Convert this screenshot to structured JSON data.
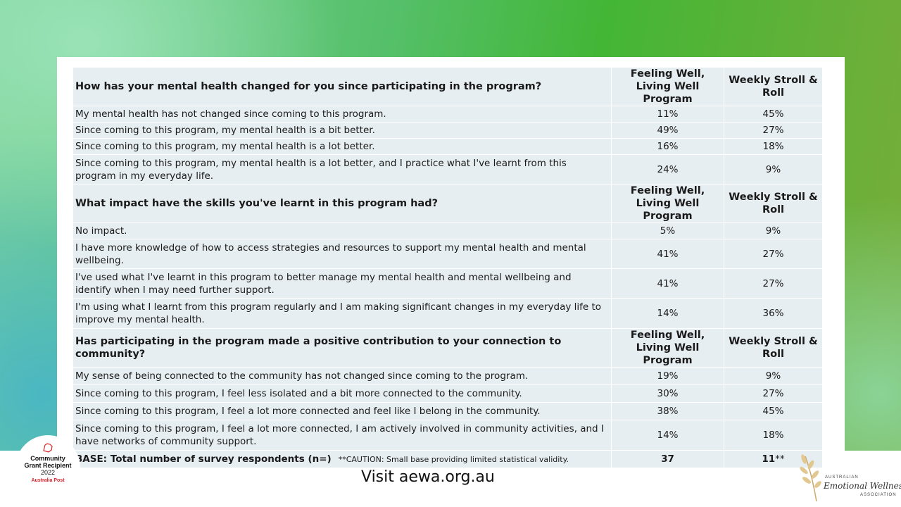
{
  "columns": {
    "col1": "Feeling Well, Living Well  Program",
    "col1b": "Feeling Well, Living Well Program",
    "col2": "Weekly Stroll & Roll"
  },
  "section1": {
    "question": "How has your mental health changed for you since participating in the program?",
    "rows": [
      {
        "label": "My mental health has not changed since coming to this program.",
        "v1": "11%",
        "v2": "45%"
      },
      {
        "label": "Since coming to this program, my mental health is a bit better.",
        "v1": "49%",
        "v2": "27%"
      },
      {
        "label": "Since coming to this program, my mental health is a lot better.",
        "v1": "16%",
        "v2": "18%"
      },
      {
        "label": "Since coming to this program, my mental health is a lot better, and I practice what I've learnt from this program in my everyday life.",
        "v1": "24%",
        "v2": "9%"
      }
    ]
  },
  "section2": {
    "question": "What impact have the skills you've learnt in this program had?",
    "rows": [
      {
        "label": "No impact.",
        "v1": "5%",
        "v2": "9%"
      },
      {
        "label": "I have more knowledge of how to access strategies and resources to support my mental health and mental wellbeing.",
        "v1": "41%",
        "v2": "27%"
      },
      {
        "label": "I've used what I've learnt in this program to better manage my mental health and mental wellbeing and identify when I may need further support.",
        "v1": "41%",
        "v2": "27%"
      },
      {
        "label": "I'm using what I learnt from this program regularly and I am making significant changes in my everyday life to improve my mental health.",
        "v1": "14%",
        "v2": "36%"
      }
    ]
  },
  "section3": {
    "question": "Has participating in the program made a positive contribution to your connection to community?",
    "rows": [
      {
        "label": "My sense of being connected to the community has not changed since coming to the program.",
        "v1": "19%",
        "v2": "9%"
      },
      {
        "label": "Since coming to this program, I feel less isolated and a bit more connected to the community.",
        "v1": "30%",
        "v2": "27%"
      },
      {
        "label": "Since coming to this program, I feel a lot more connected and feel like I belong in the community.",
        "v1": "38%",
        "v2": "45%"
      },
      {
        "label": "Since coming to this program, I feel a lot more connected, I am actively involved in community activities, and I have networks of community support.",
        "v1": "14%",
        "v2": "18%"
      }
    ]
  },
  "base": {
    "label": "BASE: Total number of survey respondents (n=)",
    "caution": "**CAUTION:  Small base providing limited  statistical validity.",
    "v1": "37",
    "v2": "11",
    "v2_suffix": "**"
  },
  "footer": {
    "url": "Visit aewa.org.au"
  },
  "badge": {
    "line1": "Community",
    "line2": "Grant Recipient",
    "line3": "2022",
    "brand": "Australia Post",
    "icon": "australia-post-logo-icon"
  },
  "logo": {
    "line1": "AUSTRALIAN",
    "line2": "Emotional Wellness",
    "line3": "ASSOCIATION",
    "icon": "leaf-branch-icon"
  },
  "colors": {
    "cell_bg": "#e7eef1",
    "brand_green": "#43b636",
    "ap_red": "#d8232a"
  }
}
